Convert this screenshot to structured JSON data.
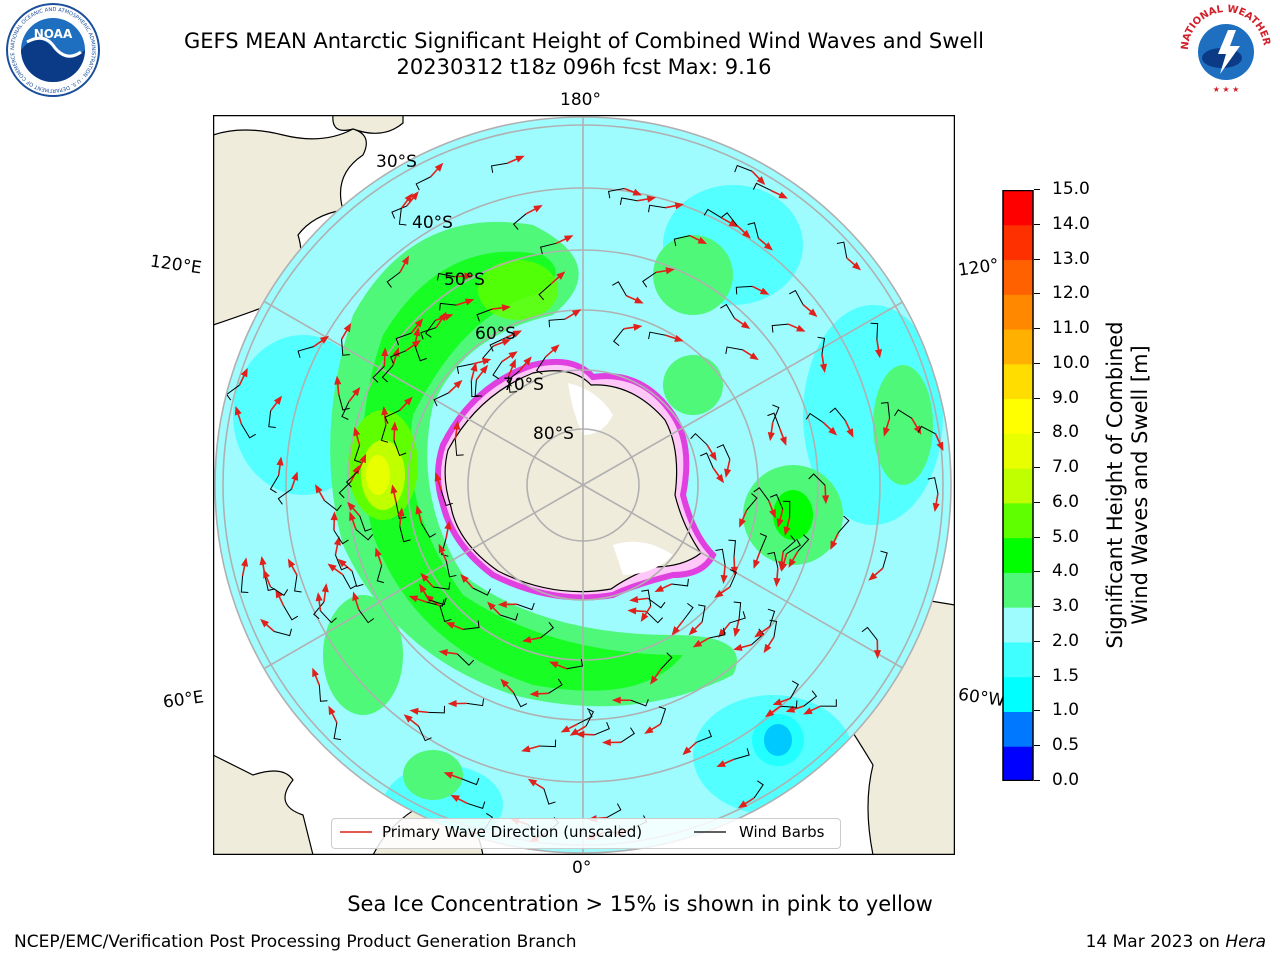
{
  "title": {
    "line1": "GEFS MEAN Antarctic Significant Height of Combined Wind Waves and Swell",
    "line2": "20230312 t18z 096h fcst   Max: 9.16"
  },
  "map": {
    "longitude_labels": {
      "top": "180°",
      "bottom": "0°",
      "left_upper": "120°E",
      "left_lower": "60°E",
      "right_upper": "120°",
      "right_lower": "60°W"
    },
    "latitude_labels": [
      "30°S",
      "40°S",
      "50°S",
      "60°S",
      "70°S",
      "80°S"
    ],
    "colors": {
      "land": "#efecdc",
      "grid": "#b0b0b0",
      "wave_arrow": "#e0201a",
      "wind_barb": "#000000",
      "sea_ice": "#e040e0"
    }
  },
  "legend": {
    "wave_label": "Primary Wave Direction (unscaled)",
    "wind_label": "Wind Barbs"
  },
  "colorbar": {
    "label_line1": "Significant Height of Combined",
    "label_line2": "Wind Waves and Swell [m]",
    "ticks": [
      "0.0",
      "0.5",
      "1.0",
      "1.5",
      "2.0",
      "3.0",
      "4.0",
      "5.0",
      "6.0",
      "7.0",
      "8.0",
      "9.0",
      "10.0",
      "11.0",
      "12.0",
      "13.0",
      "14.0",
      "15.0"
    ],
    "colors": [
      "#0000ff",
      "#0078ff",
      "#00ffff",
      "#40ffff",
      "#9efcff",
      "#50f87a",
      "#00ff00",
      "#60ff00",
      "#c0ff00",
      "#e8ff00",
      "#ffff00",
      "#ffdd00",
      "#ffb000",
      "#ff8800",
      "#ff6000",
      "#ff3000",
      "#ff0000"
    ]
  },
  "caption": "Sea Ice Concentration > 15% is shown in pink to yellow",
  "credit": {
    "left": "NCEP/EMC/Verification Post Processing Product Generation Branch",
    "right_date": "14 Mar 2023 on ",
    "right_host": "Hera"
  },
  "logos": {
    "noaa_text": "NOAA",
    "noaa_ring": "NATIONAL OCEANIC AND ATMOSPHERIC ADMINISTRATION · U.S. DEPARTMENT OF COMMERCE",
    "nws_ring": "NATIONAL WEATHER SERVICE"
  }
}
